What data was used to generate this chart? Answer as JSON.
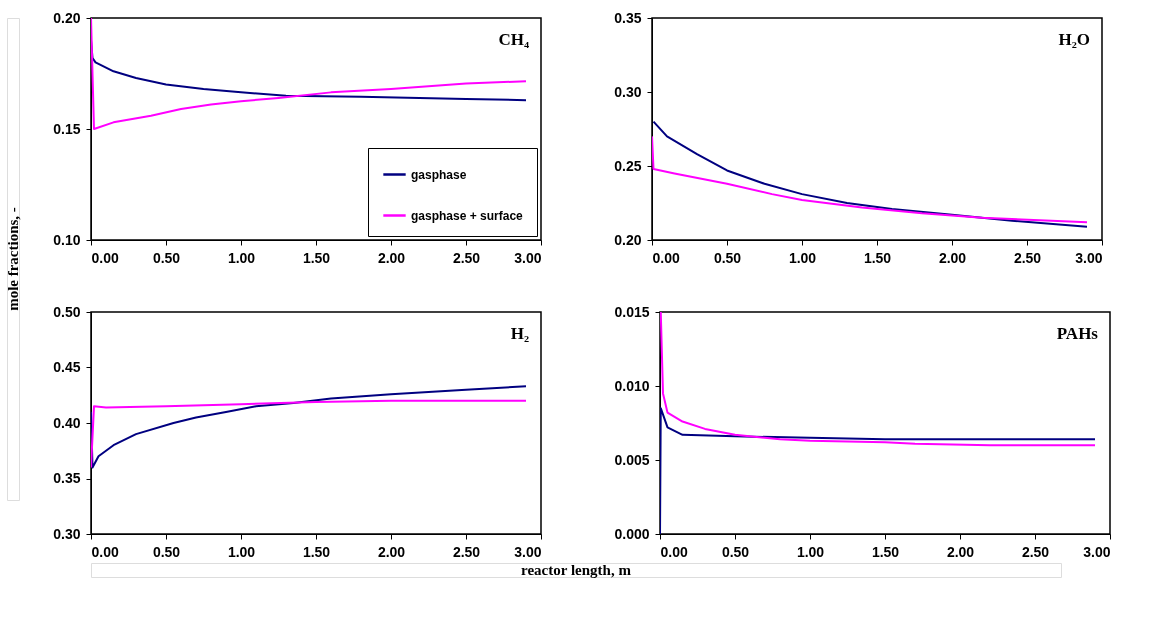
{
  "chart_data": [
    {
      "type": "line",
      "annotations": [
        "CH₄"
      ],
      "ylabel": "mole fractions, -",
      "legend": "bottom right",
      "grid": false,
      "xlim": [
        0,
        3
      ],
      "xticks": [
        {
          "value": 0,
          "label": "0.00"
        },
        {
          "value": 0.5,
          "label": "0.50"
        },
        {
          "value": 1,
          "label": "1.00"
        },
        {
          "value": 1.5,
          "label": "1.50"
        },
        {
          "value": 2,
          "label": "2.00"
        },
        {
          "value": 2.5,
          "label": "2.50"
        },
        {
          "value": 3,
          "label": "3.00"
        }
      ],
      "ylim": [
        0.1,
        0.2
      ],
      "yticks": [
        {
          "value": 0.1,
          "label": "0.10"
        },
        {
          "value": 0.15,
          "label": "0.15"
        },
        {
          "value": 0.2,
          "label": "0.20"
        }
      ],
      "series": [
        {
          "name": "gasphase",
          "color": "#000080",
          "x": [
            0,
            0.01,
            0.03,
            0.15,
            0.3,
            0.5,
            0.75,
            1.0,
            1.3,
            1.8,
            2.5,
            2.9
          ],
          "values": [
            0.19,
            0.182,
            0.18,
            0.176,
            0.173,
            0.17,
            0.168,
            0.1665,
            0.165,
            0.1645,
            0.1635,
            0.163
          ]
        },
        {
          "name": "gasphase + surface",
          "color": "#ff00ff",
          "x": [
            0,
            0.02,
            0.15,
            0.4,
            0.6,
            0.8,
            1.0,
            1.25,
            1.6,
            2.0,
            2.5,
            2.9
          ],
          "values": [
            0.2,
            0.15,
            0.153,
            0.156,
            0.159,
            0.161,
            0.1625,
            0.164,
            0.1665,
            0.168,
            0.1705,
            0.1715
          ]
        }
      ]
    },
    {
      "type": "line",
      "annotations": [
        "H₂O"
      ],
      "grid": false,
      "xlim": [
        0,
        3
      ],
      "xticks": [
        {
          "value": 0,
          "label": "0.00"
        },
        {
          "value": 0.5,
          "label": "0.50"
        },
        {
          "value": 1,
          "label": "1.00"
        },
        {
          "value": 1.5,
          "label": "1.50"
        },
        {
          "value": 2,
          "label": "2.00"
        },
        {
          "value": 2.5,
          "label": "2.50"
        },
        {
          "value": 3,
          "label": "3.00"
        }
      ],
      "ylim": [
        0.2,
        0.35
      ],
      "yticks": [
        {
          "value": 0.2,
          "label": "0.20"
        },
        {
          "value": 0.25,
          "label": "0.25"
        },
        {
          "value": 0.3,
          "label": "0.30"
        },
        {
          "value": 0.35,
          "label": "0.35"
        }
      ],
      "series": [
        {
          "color": "#000080",
          "x": [
            0.01,
            0.1,
            0.3,
            0.5,
            0.75,
            1.0,
            1.3,
            1.6,
            2.0,
            2.4,
            2.9
          ],
          "values": [
            0.28,
            0.27,
            0.258,
            0.247,
            0.238,
            0.231,
            0.225,
            0.221,
            0.217,
            0.213,
            0.209
          ]
        },
        {
          "color": "#ff00ff",
          "x": [
            0,
            0.01,
            0.15,
            0.5,
            0.8,
            1.0,
            1.4,
            1.8,
            2.2,
            2.9
          ],
          "values": [
            0.27,
            0.248,
            0.245,
            0.238,
            0.231,
            0.227,
            0.222,
            0.218,
            0.215,
            0.212
          ]
        }
      ]
    },
    {
      "type": "line",
      "annotations": [
        "H₂"
      ],
      "xlabel": "reactor length, m",
      "grid": false,
      "xlim": [
        0,
        3
      ],
      "xticks": [
        {
          "value": 0,
          "label": "0.00"
        },
        {
          "value": 0.5,
          "label": "0.50"
        },
        {
          "value": 1,
          "label": "1.00"
        },
        {
          "value": 1.5,
          "label": "1.50"
        },
        {
          "value": 2,
          "label": "2.00"
        },
        {
          "value": 2.5,
          "label": "2.50"
        },
        {
          "value": 3,
          "label": "3.00"
        }
      ],
      "ylim": [
        0.3,
        0.5
      ],
      "yticks": [
        {
          "value": 0.3,
          "label": "0.30"
        },
        {
          "value": 0.35,
          "label": "0.35"
        },
        {
          "value": 0.4,
          "label": "0.40"
        },
        {
          "value": 0.45,
          "label": "0.45"
        },
        {
          "value": 0.5,
          "label": "0.50"
        }
      ],
      "series": [
        {
          "color": "#000080",
          "x": [
            0,
            0.01,
            0.05,
            0.15,
            0.3,
            0.55,
            0.7,
            0.9,
            1.1,
            1.35,
            1.6,
            2.0,
            2.5,
            2.9
          ],
          "values": [
            0.41,
            0.36,
            0.37,
            0.38,
            0.39,
            0.4,
            0.405,
            0.41,
            0.415,
            0.418,
            0.422,
            0.426,
            0.43,
            0.433
          ]
        },
        {
          "color": "#ff00ff",
          "x": [
            0,
            0.02,
            0.1,
            0.5,
            1.0,
            1.5,
            2.0,
            2.9
          ],
          "values": [
            0.36,
            0.415,
            0.414,
            0.415,
            0.417,
            0.419,
            0.42,
            0.42
          ]
        }
      ]
    },
    {
      "type": "line",
      "annotations": [
        "PAHs"
      ],
      "grid": false,
      "xlim": [
        0,
        3
      ],
      "xticks": [
        {
          "value": 0,
          "label": "0.00"
        },
        {
          "value": 0.5,
          "label": "0.50"
        },
        {
          "value": 1,
          "label": "1.00"
        },
        {
          "value": 1.5,
          "label": "1.50"
        },
        {
          "value": 2,
          "label": "2.00"
        },
        {
          "value": 2.5,
          "label": "2.50"
        },
        {
          "value": 3,
          "label": "3.00"
        }
      ],
      "ylim": [
        0,
        0.015
      ],
      "yticks": [
        {
          "value": 0,
          "label": "0.000"
        },
        {
          "value": 0.005,
          "label": "0.005"
        },
        {
          "value": 0.01,
          "label": "0.010"
        },
        {
          "value": 0.015,
          "label": "0.015"
        }
      ],
      "series": [
        {
          "color": "#000080",
          "x": [
            0,
            0.005,
            0.05,
            0.15,
            0.5,
            1.0,
            1.5,
            2.9
          ],
          "values": [
            0,
            0.0085,
            0.0072,
            0.0067,
            0.0066,
            0.0065,
            0.0064,
            0.0064
          ]
        },
        {
          "color": "#ff00ff",
          "x": [
            0.005,
            0.02,
            0.05,
            0.15,
            0.3,
            0.5,
            0.8,
            1.0,
            1.5,
            1.7,
            2.2,
            2.9
          ],
          "values": [
            0.015,
            0.0095,
            0.0082,
            0.0076,
            0.0071,
            0.0067,
            0.0064,
            0.0063,
            0.0062,
            0.0061,
            0.006,
            0.006
          ]
        }
      ]
    }
  ]
}
